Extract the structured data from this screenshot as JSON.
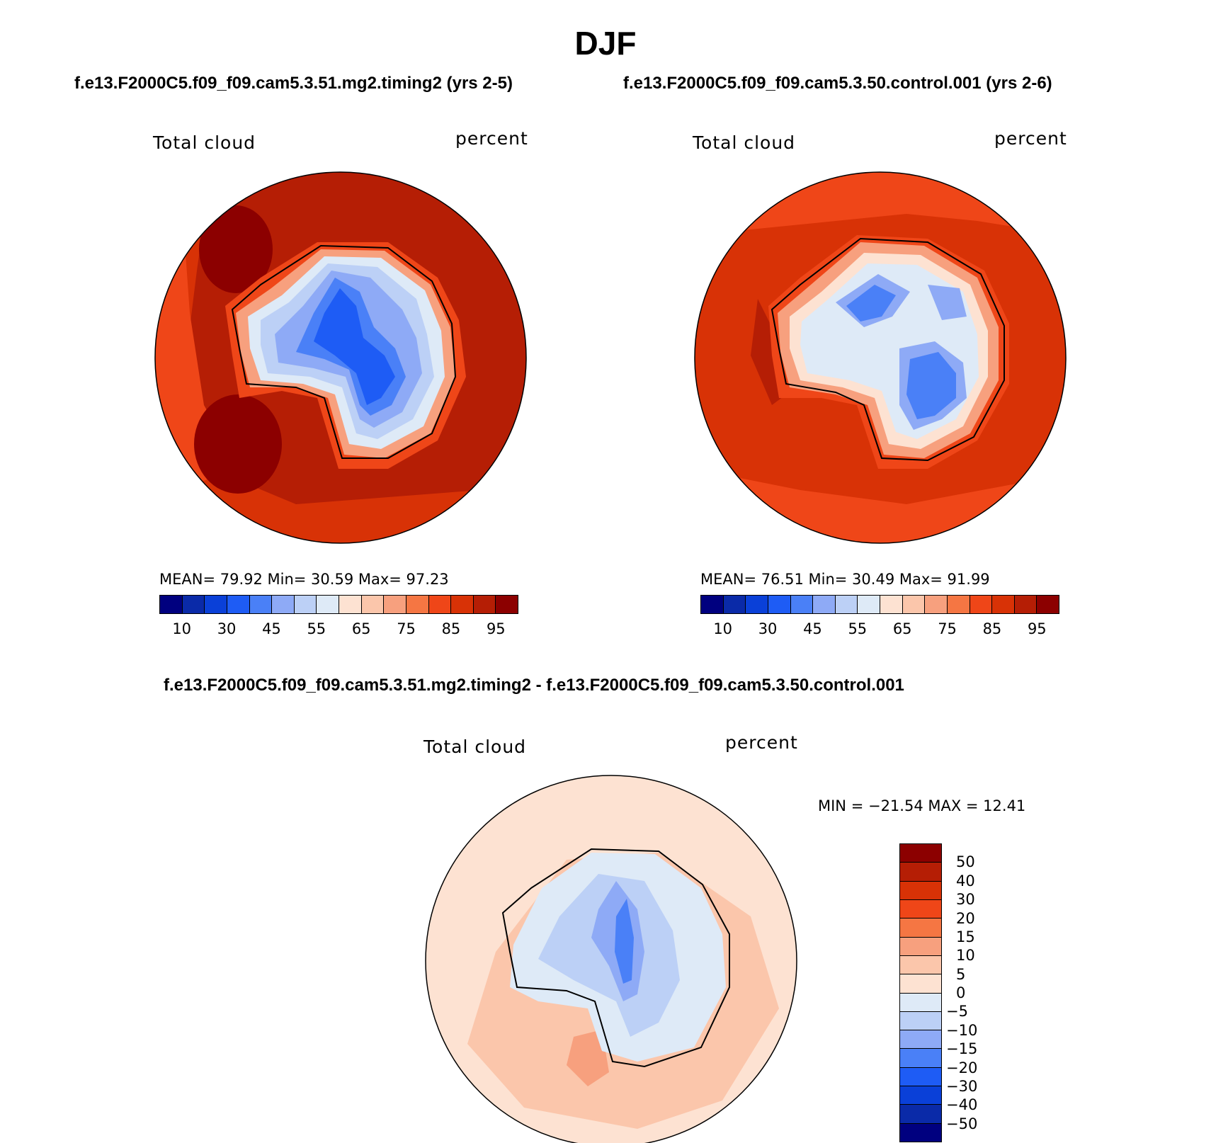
{
  "title": "DJF",
  "case_left": "f.e13.F2000C5.f09_f09.cam5.3.51.mg2.timing2 (yrs 2-5)",
  "case_right": "f.e13.F2000C5.f09_f09.cam5.3.50.control.001 (yrs 2-6)",
  "diff_title": "f.e13.F2000C5.f09_f09.cam5.3.51.mg2.timing2 - f.e13.F2000C5.f09_f09.cam5.3.50.control.001",
  "panels": {
    "left": {
      "variable": "Total cloud",
      "units": "percent",
      "mean_text": "MEAN=   79.92   Min=   30.59   Max=   97.23"
    },
    "right": {
      "variable": "Total cloud",
      "units": "percent",
      "mean_text": "MEAN=   76.51   Min=   30.49   Max=   91.99"
    },
    "diff": {
      "variable": "Total cloud",
      "units": "percent",
      "minmax_text": "MIN = −21.54 MAX =   12.41"
    }
  },
  "colorbar_abs": {
    "colors": [
      "#00007f",
      "#0a2aa8",
      "#0a40d8",
      "#1e5cf5",
      "#4a80f7",
      "#8eaaf6",
      "#bcd0f6",
      "#deeaf7",
      "#fde2d2",
      "#fbc6ab",
      "#f7a07e",
      "#f57643",
      "#ef4618",
      "#d83206",
      "#b51e05",
      "#8c0000"
    ],
    "labels": [
      "10",
      "30",
      "45",
      "55",
      "65",
      "75",
      "85",
      "95"
    ]
  },
  "colorbar_diff": {
    "colors": [
      "#8c0000",
      "#b51e05",
      "#d83206",
      "#ef4618",
      "#f57643",
      "#f7a07e",
      "#fbc6ab",
      "#fde2d2",
      "#deeaf7",
      "#bcd0f6",
      "#8eaaf6",
      "#4a80f7",
      "#1e5cf5",
      "#0a40d8",
      "#0a2aa8",
      "#00007f"
    ],
    "labels": [
      "50",
      "40",
      "30",
      "20",
      "15",
      "10",
      "5",
      "0",
      "−5",
      "−10",
      "−15",
      "−20",
      "−30",
      "−40",
      "−50"
    ]
  }
}
